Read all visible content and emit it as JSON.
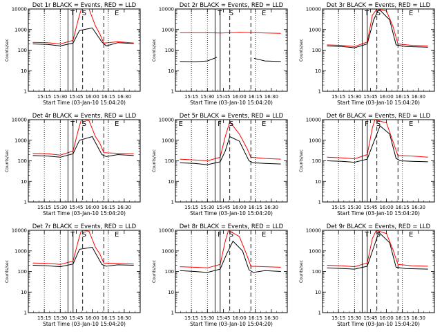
{
  "colors": {
    "events": "#000000",
    "lld": "#ff0000",
    "background": "#ffffff"
  },
  "chart_data": [
    {
      "type": "line",
      "title": "Det 1r BLACK = Events, RED = LLD",
      "xlabel": "Start Time (03-Jan-10 15:04:20)",
      "ylabel": "Counts/sec",
      "y_scale": "log",
      "ylim": [
        1,
        10000
      ],
      "x_ticks": [
        "15:15",
        "15:30",
        "15:45",
        "16:00",
        "16:15",
        "16:30"
      ],
      "y_ticks": [
        "1",
        "10",
        "100",
        "1000",
        "10000"
      ],
      "markers": [
        "T",
        "S",
        "E"
      ],
      "series": [
        {
          "key": "events",
          "values": [
            [
              15.07,
              200
            ],
            [
              15.3,
              190
            ],
            [
              15.5,
              160
            ],
            [
              15.7,
              220
            ],
            [
              15.8,
              900
            ],
            [
              16.0,
              1200
            ],
            [
              16.15,
              250
            ],
            [
              16.22,
              160
            ],
            [
              16.4,
              230
            ],
            [
              16.65,
              210
            ]
          ]
        },
        {
          "key": "lld",
          "values": [
            [
              15.07,
              240
            ],
            [
              15.3,
              230
            ],
            [
              15.5,
              200
            ],
            [
              15.7,
              300
            ],
            [
              15.78,
              3000
            ],
            [
              15.83,
              10000
            ],
            [
              15.95,
              10000
            ],
            [
              16.05,
              1500
            ],
            [
              16.12,
              600
            ],
            [
              16.18,
              220
            ],
            [
              16.25,
              230
            ],
            [
              16.4,
              260
            ],
            [
              16.65,
              220
            ]
          ]
        }
      ]
    },
    {
      "type": "line",
      "title": "Det 2r BLACK = Events, RED = LLD",
      "xlabel": "Start Time (03-Jan-10 15:04:20)",
      "ylabel": "Counts/sec",
      "y_scale": "log",
      "ylim": [
        1,
        10000
      ],
      "x_ticks": [
        "15:15",
        "15:30",
        "15:45",
        "16:00",
        "16:15",
        "16:30"
      ],
      "y_ticks": [
        "1",
        "10",
        "100",
        "1000",
        "10000"
      ],
      "markers": [
        "T",
        "S",
        "E"
      ],
      "series": [
        {
          "key": "events",
          "values": [
            [
              15.07,
              28
            ],
            [
              15.3,
              27
            ],
            [
              15.5,
              30
            ],
            [
              15.65,
              45
            ],
            [
              15.72,
              null
            ],
            [
              16.2,
              null
            ],
            [
              16.23,
              40
            ],
            [
              16.4,
              30
            ],
            [
              16.65,
              28
            ]
          ]
        },
        {
          "key": "lld",
          "values": [
            [
              15.07,
              700
            ],
            [
              15.5,
              700
            ],
            [
              15.72,
              680
            ],
            [
              16.0,
              730
            ],
            [
              16.3,
              700
            ],
            [
              16.65,
              650
            ]
          ]
        }
      ]
    },
    {
      "type": "line",
      "title": "Det 3r BLACK = Events, RED = LLD",
      "xlabel": "Start Time (03-Jan-10 15:04:20)",
      "ylabel": "Counts/sec",
      "y_scale": "log",
      "ylim": [
        1,
        10000
      ],
      "x_ticks": [
        "15:15",
        "15:30",
        "15:45",
        "16:00",
        "16:15",
        "16:30"
      ],
      "y_ticks": [
        "1",
        "10",
        "100",
        "1000",
        "10000"
      ],
      "markers": [
        "T",
        "S",
        "E"
      ],
      "series": [
        {
          "key": "events",
          "values": [
            [
              15.07,
              160
            ],
            [
              15.3,
              150
            ],
            [
              15.5,
              130
            ],
            [
              15.7,
              200
            ],
            [
              15.8,
              3000
            ],
            [
              15.88,
              10000
            ],
            [
              16.05,
              3000
            ],
            [
              16.15,
              180
            ],
            [
              16.3,
              150
            ],
            [
              16.65,
              140
            ]
          ]
        },
        {
          "key": "lld",
          "values": [
            [
              15.07,
              180
            ],
            [
              15.3,
              170
            ],
            [
              15.5,
              150
            ],
            [
              15.7,
              250
            ],
            [
              15.78,
              5000
            ],
            [
              15.85,
              10000
            ],
            [
              16.0,
              8000
            ],
            [
              16.1,
              1500
            ],
            [
              16.18,
              200
            ],
            [
              16.4,
              170
            ],
            [
              16.65,
              160
            ]
          ]
        }
      ]
    },
    {
      "type": "line",
      "title": "Det 4r BLACK = Events, RED = LLD",
      "xlabel": "Start Time (03-Jan-10 15:04:20)",
      "ylabel": "Counts/sec",
      "y_scale": "log",
      "ylim": [
        1,
        10000
      ],
      "x_ticks": [
        "15:15",
        "15:30",
        "15:45",
        "16:00",
        "16:15",
        "16:30"
      ],
      "y_ticks": [
        "1",
        "10",
        "100",
        "1000",
        "10000"
      ],
      "markers": [
        "T",
        "S",
        "E"
      ],
      "series": [
        {
          "key": "events",
          "values": [
            [
              15.07,
              180
            ],
            [
              15.3,
              170
            ],
            [
              15.5,
              150
            ],
            [
              15.7,
              220
            ],
            [
              15.8,
              1000
            ],
            [
              16.0,
              1500
            ],
            [
              16.15,
              200
            ],
            [
              16.22,
              160
            ],
            [
              16.4,
              200
            ],
            [
              16.65,
              180
            ]
          ]
        },
        {
          "key": "lld",
          "values": [
            [
              15.07,
              230
            ],
            [
              15.3,
              220
            ],
            [
              15.5,
              190
            ],
            [
              15.7,
              300
            ],
            [
              15.78,
              3000
            ],
            [
              15.83,
              10000
            ],
            [
              15.95,
              9000
            ],
            [
              16.05,
              1500
            ],
            [
              16.12,
              700
            ],
            [
              16.18,
              250
            ],
            [
              16.3,
              240
            ],
            [
              16.65,
              220
            ]
          ]
        }
      ]
    },
    {
      "type": "line",
      "title": "Det 5r BLACK = Events, RED = LLD",
      "xlabel": "Start Time (03-Jan-10 15:04:20)",
      "ylabel": "Counts/sec",
      "y_scale": "log",
      "ylim": [
        1,
        10000
      ],
      "x_ticks": [
        "15:15",
        "15:30",
        "15:45",
        "16:00",
        "16:15",
        "16:30"
      ],
      "y_ticks": [
        "1",
        "10",
        "100",
        "1000",
        "10000"
      ],
      "markers": [
        "E",
        "F",
        "S",
        "E"
      ],
      "series": [
        {
          "key": "events",
          "values": [
            [
              15.07,
              80
            ],
            [
              15.3,
              75
            ],
            [
              15.5,
              65
            ],
            [
              15.7,
              90
            ],
            [
              15.78,
              300
            ],
            [
              15.85,
              1500
            ],
            [
              16.0,
              900
            ],
            [
              16.15,
              100
            ],
            [
              16.22,
              80
            ],
            [
              16.4,
              75
            ],
            [
              16.65,
              70
            ]
          ]
        },
        {
          "key": "lld",
          "values": [
            [
              15.07,
              120
            ],
            [
              15.3,
              110
            ],
            [
              15.5,
              100
            ],
            [
              15.7,
              150
            ],
            [
              15.78,
              1500
            ],
            [
              15.85,
              8000
            ],
            [
              16.0,
              2000
            ],
            [
              16.12,
              400
            ],
            [
              16.18,
              150
            ],
            [
              16.4,
              130
            ],
            [
              16.65,
              120
            ]
          ]
        }
      ]
    },
    {
      "type": "line",
      "title": "Det 6r BLACK = Events, RED = LLD",
      "xlabel": "Start Time (03-Jan-10 15:04:20)",
      "ylabel": "Counts/sec",
      "y_scale": "log",
      "ylim": [
        1,
        10000
      ],
      "x_ticks": [
        "15:15",
        "15:30",
        "15:45",
        "16:00",
        "16:15",
        "16:30"
      ],
      "y_ticks": [
        "1",
        "10",
        "100",
        "1000",
        "10000"
      ],
      "markers": [
        "F",
        "S",
        "E"
      ],
      "series": [
        {
          "key": "events",
          "values": [
            [
              15.07,
              100
            ],
            [
              15.3,
              95
            ],
            [
              15.5,
              85
            ],
            [
              15.7,
              120
            ],
            [
              15.8,
              800
            ],
            [
              15.9,
              5000
            ],
            [
              16.05,
              2000
            ],
            [
              16.15,
              130
            ],
            [
              16.22,
              100
            ],
            [
              16.4,
              95
            ],
            [
              16.65,
              90
            ]
          ]
        },
        {
          "key": "lld",
          "values": [
            [
              15.07,
              150
            ],
            [
              15.3,
              140
            ],
            [
              15.5,
              125
            ],
            [
              15.7,
              200
            ],
            [
              15.78,
              4000
            ],
            [
              15.82,
              10000
            ],
            [
              16.0,
              7000
            ],
            [
              16.12,
              600
            ],
            [
              16.18,
              180
            ],
            [
              16.4,
              170
            ],
            [
              16.65,
              150
            ]
          ]
        }
      ]
    },
    {
      "type": "line",
      "title": "Det 7r BLACK = Events, RED = LLD",
      "xlabel": "Start Time (03-Jan-10 15:04:20)",
      "ylabel": "Counts/sec",
      "y_scale": "log",
      "ylim": [
        1,
        10000
      ],
      "x_ticks": [
        "15:15",
        "15:30",
        "15:45",
        "16:00",
        "16:15",
        "16:30"
      ],
      "y_ticks": [
        "1",
        "10",
        "100",
        "1000",
        "10000"
      ],
      "markers": [
        "T",
        "S",
        "E"
      ],
      "series": [
        {
          "key": "events",
          "values": [
            [
              15.07,
              200
            ],
            [
              15.3,
              190
            ],
            [
              15.5,
              170
            ],
            [
              15.7,
              230
            ],
            [
              15.8,
              1200
            ],
            [
              16.0,
              1500
            ],
            [
              16.15,
              220
            ],
            [
              16.22,
              180
            ],
            [
              16.4,
              210
            ],
            [
              16.65,
              200
            ]
          ]
        },
        {
          "key": "lld",
          "values": [
            [
              15.07,
              260
            ],
            [
              15.3,
              250
            ],
            [
              15.5,
              220
            ],
            [
              15.7,
              320
            ],
            [
              15.78,
              3000
            ],
            [
              15.83,
              10000
            ],
            [
              15.95,
              9000
            ],
            [
              16.05,
              1500
            ],
            [
              16.12,
              700
            ],
            [
              16.18,
              260
            ],
            [
              16.4,
              250
            ],
            [
              16.65,
              230
            ]
          ]
        }
      ]
    },
    {
      "type": "line",
      "title": "Det 8r BLACK = Events, RED = LLD",
      "xlabel": "Start Time (03-Jan-10 15:04:20)",
      "ylabel": "Counts/sec",
      "y_scale": "log",
      "ylim": [
        1,
        10000
      ],
      "x_ticks": [
        "15:15",
        "15:30",
        "15:45",
        "16:00",
        "16:15",
        "16:30"
      ],
      "y_ticks": [
        "1",
        "10",
        "100",
        "1000",
        "10000"
      ],
      "markers": [
        "F",
        "S",
        "E"
      ],
      "series": [
        {
          "key": "events",
          "values": [
            [
              15.07,
              110
            ],
            [
              15.3,
              100
            ],
            [
              15.5,
              90
            ],
            [
              15.7,
              130
            ],
            [
              15.8,
              700
            ],
            [
              15.9,
              3000
            ],
            [
              16.05,
              1000
            ],
            [
              16.15,
              120
            ],
            [
              16.22,
              90
            ],
            [
              16.4,
              110
            ],
            [
              16.65,
              100
            ]
          ]
        },
        {
          "key": "lld",
          "values": [
            [
              15.07,
              170
            ],
            [
              15.3,
              160
            ],
            [
              15.5,
              150
            ],
            [
              15.7,
              220
            ],
            [
              15.78,
              3000
            ],
            [
              15.83,
              10000
            ],
            [
              16.0,
              5000
            ],
            [
              16.12,
              600
            ],
            [
              16.18,
              180
            ],
            [
              16.4,
              170
            ],
            [
              16.65,
              160
            ]
          ]
        }
      ]
    },
    {
      "type": "line",
      "title": "Det 9r BLACK = Events, RED = LLD",
      "xlabel": "Start Time (03-Jan-10 15:04:20)",
      "ylabel": "Counts/sec",
      "y_scale": "log",
      "ylim": [
        1,
        10000
      ],
      "x_ticks": [
        "15:15",
        "15:30",
        "15:45",
        "16:00",
        "16:15",
        "16:30"
      ],
      "y_ticks": [
        "1",
        "10",
        "100",
        "1000",
        "10000"
      ],
      "markers": [
        "T",
        "S",
        "E"
      ],
      "series": [
        {
          "key": "events",
          "values": [
            [
              15.07,
              150
            ],
            [
              15.3,
              140
            ],
            [
              15.5,
              130
            ],
            [
              15.7,
              180
            ],
            [
              15.8,
              1500
            ],
            [
              15.88,
              8000
            ],
            [
              16.05,
              2500
            ],
            [
              16.15,
              160
            ],
            [
              16.3,
              140
            ],
            [
              16.65,
              130
            ]
          ]
        },
        {
          "key": "lld",
          "values": [
            [
              15.07,
              200
            ],
            [
              15.3,
              190
            ],
            [
              15.5,
              170
            ],
            [
              15.7,
              260
            ],
            [
              15.78,
              4000
            ],
            [
              15.84,
              10000
            ],
            [
              16.0,
              7000
            ],
            [
              16.1,
              1200
            ],
            [
              16.18,
              220
            ],
            [
              16.4,
              190
            ],
            [
              16.65,
              180
            ]
          ]
        }
      ]
    }
  ]
}
